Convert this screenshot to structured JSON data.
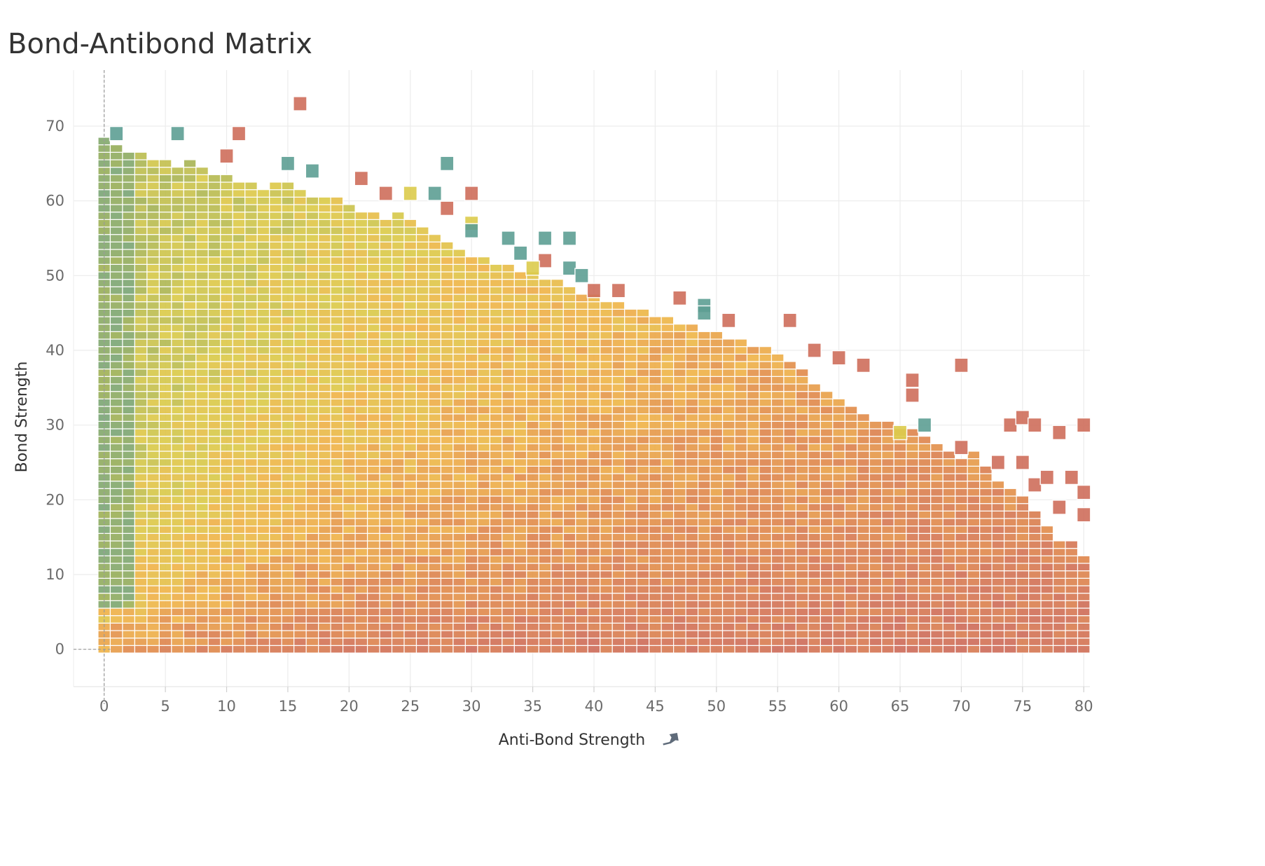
{
  "page": {
    "title": "Bond-Antibond Matrix"
  },
  "chart_data": {
    "type": "heatmap",
    "title": "Bond-Antibond Matrix",
    "xlabel": "Anti-Bond Strength",
    "ylabel": "Bond Strength",
    "x_axis_icon": "pin-icon",
    "xlim": [
      -2.5,
      80.5
    ],
    "ylim": [
      -5,
      77.5
    ],
    "x_ticks": [
      0,
      5,
      10,
      15,
      20,
      25,
      30,
      35,
      40,
      45,
      50,
      55,
      60,
      65,
      70,
      75,
      80
    ],
    "y_ticks": [
      0,
      10,
      20,
      30,
      40,
      50,
      60,
      70
    ],
    "cell_width": 1,
    "cell_height": 1,
    "grid": true,
    "reference_lines": {
      "x": 0,
      "y": 0,
      "style": "dashed"
    },
    "color_scale": [
      {
        "value": 0.0,
        "color": "#5e9f94"
      },
      {
        "value": 0.25,
        "color": "#9cb05a"
      },
      {
        "value": 0.45,
        "color": "#dccb4c"
      },
      {
        "value": 0.62,
        "color": "#f0b54a"
      },
      {
        "value": 0.8,
        "color": "#e0894f"
      },
      {
        "value": 1.0,
        "color": "#cf6e5c"
      }
    ],
    "column_top_bond": [
      {
        "anti_bond": 0,
        "max_bond": 68
      },
      {
        "anti_bond": 1,
        "max_bond": 67
      },
      {
        "anti_bond": 2,
        "max_bond": 66
      },
      {
        "anti_bond": 3,
        "max_bond": 66
      },
      {
        "anti_bond": 4,
        "max_bond": 65
      },
      {
        "anti_bond": 5,
        "max_bond": 65
      },
      {
        "anti_bond": 6,
        "max_bond": 64
      },
      {
        "anti_bond": 7,
        "max_bond": 65
      },
      {
        "anti_bond": 8,
        "max_bond": 64
      },
      {
        "anti_bond": 9,
        "max_bond": 63
      },
      {
        "anti_bond": 10,
        "max_bond": 63
      },
      {
        "anti_bond": 11,
        "max_bond": 62
      },
      {
        "anti_bond": 12,
        "max_bond": 62
      },
      {
        "anti_bond": 13,
        "max_bond": 61
      },
      {
        "anti_bond": 14,
        "max_bond": 62
      },
      {
        "anti_bond": 15,
        "max_bond": 62
      },
      {
        "anti_bond": 16,
        "max_bond": 61
      },
      {
        "anti_bond": 17,
        "max_bond": 60
      },
      {
        "anti_bond": 18,
        "max_bond": 60
      },
      {
        "anti_bond": 19,
        "max_bond": 60
      },
      {
        "anti_bond": 20,
        "max_bond": 59
      },
      {
        "anti_bond": 21,
        "max_bond": 58
      },
      {
        "anti_bond": 22,
        "max_bond": 58
      },
      {
        "anti_bond": 23,
        "max_bond": 57
      },
      {
        "anti_bond": 24,
        "max_bond": 58
      },
      {
        "anti_bond": 25,
        "max_bond": 57
      },
      {
        "anti_bond": 26,
        "max_bond": 56
      },
      {
        "anti_bond": 27,
        "max_bond": 55
      },
      {
        "anti_bond": 28,
        "max_bond": 54
      },
      {
        "anti_bond": 29,
        "max_bond": 53
      },
      {
        "anti_bond": 30,
        "max_bond": 52
      },
      {
        "anti_bond": 31,
        "max_bond": 52
      },
      {
        "anti_bond": 32,
        "max_bond": 51
      },
      {
        "anti_bond": 33,
        "max_bond": 51
      },
      {
        "anti_bond": 34,
        "max_bond": 50
      },
      {
        "anti_bond": 35,
        "max_bond": 50
      },
      {
        "anti_bond": 36,
        "max_bond": 49
      },
      {
        "anti_bond": 37,
        "max_bond": 49
      },
      {
        "anti_bond": 38,
        "max_bond": 48
      },
      {
        "anti_bond": 39,
        "max_bond": 47
      },
      {
        "anti_bond": 40,
        "max_bond": 47
      },
      {
        "anti_bond": 41,
        "max_bond": 46
      },
      {
        "anti_bond": 42,
        "max_bond": 46
      },
      {
        "anti_bond": 43,
        "max_bond": 45
      },
      {
        "anti_bond": 44,
        "max_bond": 45
      },
      {
        "anti_bond": 45,
        "max_bond": 44
      },
      {
        "anti_bond": 46,
        "max_bond": 44
      },
      {
        "anti_bond": 47,
        "max_bond": 43
      },
      {
        "anti_bond": 48,
        "max_bond": 43
      },
      {
        "anti_bond": 49,
        "max_bond": 42
      },
      {
        "anti_bond": 50,
        "max_bond": 42
      },
      {
        "anti_bond": 51,
        "max_bond": 41
      },
      {
        "anti_bond": 52,
        "max_bond": 41
      },
      {
        "anti_bond": 53,
        "max_bond": 40
      },
      {
        "anti_bond": 54,
        "max_bond": 40
      },
      {
        "anti_bond": 55,
        "max_bond": 39
      },
      {
        "anti_bond": 56,
        "max_bond": 38
      },
      {
        "anti_bond": 57,
        "max_bond": 37
      },
      {
        "anti_bond": 58,
        "max_bond": 35
      },
      {
        "anti_bond": 59,
        "max_bond": 34
      },
      {
        "anti_bond": 60,
        "max_bond": 33
      },
      {
        "anti_bond": 61,
        "max_bond": 32
      },
      {
        "anti_bond": 62,
        "max_bond": 31
      },
      {
        "anti_bond": 63,
        "max_bond": 30
      },
      {
        "anti_bond": 64,
        "max_bond": 30
      },
      {
        "anti_bond": 65,
        "max_bond": 29
      },
      {
        "anti_bond": 66,
        "max_bond": 29
      },
      {
        "anti_bond": 67,
        "max_bond": 28
      },
      {
        "anti_bond": 68,
        "max_bond": 27
      },
      {
        "anti_bond": 69,
        "max_bond": 26
      },
      {
        "anti_bond": 70,
        "max_bond": 25
      },
      {
        "anti_bond": 71,
        "max_bond": 26
      },
      {
        "anti_bond": 72,
        "max_bond": 24
      },
      {
        "anti_bond": 73,
        "max_bond": 22
      },
      {
        "anti_bond": 74,
        "max_bond": 21
      },
      {
        "anti_bond": 75,
        "max_bond": 20
      },
      {
        "anti_bond": 76,
        "max_bond": 18
      },
      {
        "anti_bond": 77,
        "max_bond": 16
      },
      {
        "anti_bond": 78,
        "max_bond": 14
      },
      {
        "anti_bond": 79,
        "max_bond": 14
      },
      {
        "anti_bond": 80,
        "max_bond": 12
      }
    ],
    "outlier_cells": [
      {
        "anti_bond": 16,
        "bond": 73,
        "color": "#cf6e5c"
      },
      {
        "anti_bond": 11,
        "bond": 69,
        "color": "#cf6e5c"
      },
      {
        "anti_bond": 1,
        "bond": 69,
        "color": "#5e9f94"
      },
      {
        "anti_bond": 6,
        "bond": 69,
        "color": "#5e9f94"
      },
      {
        "anti_bond": 10,
        "bond": 66,
        "color": "#cf6e5c"
      },
      {
        "anti_bond": 15,
        "bond": 65,
        "color": "#5e9f94"
      },
      {
        "anti_bond": 17,
        "bond": 64,
        "color": "#5e9f94"
      },
      {
        "anti_bond": 28,
        "bond": 65,
        "color": "#5e9f94"
      },
      {
        "anti_bond": 21,
        "bond": 63,
        "color": "#cf6e5c"
      },
      {
        "anti_bond": 23,
        "bond": 61,
        "color": "#cf6e5c"
      },
      {
        "anti_bond": 25,
        "bond": 61,
        "color": "#dccb4c"
      },
      {
        "anti_bond": 27,
        "bond": 61,
        "color": "#5e9f94"
      },
      {
        "anti_bond": 30,
        "bond": 61,
        "color": "#cf6e5c"
      },
      {
        "anti_bond": 28,
        "bond": 59,
        "color": "#cf6e5c"
      },
      {
        "anti_bond": 30,
        "bond": 57,
        "color": "#dccb4c"
      },
      {
        "anti_bond": 30,
        "bond": 56,
        "color": "#5e9f94"
      },
      {
        "anti_bond": 33,
        "bond": 55,
        "color": "#5e9f94"
      },
      {
        "anti_bond": 36,
        "bond": 55,
        "color": "#5e9f94"
      },
      {
        "anti_bond": 38,
        "bond": 55,
        "color": "#5e9f94"
      },
      {
        "anti_bond": 34,
        "bond": 53,
        "color": "#5e9f94"
      },
      {
        "anti_bond": 36,
        "bond": 52,
        "color": "#cf6e5c"
      },
      {
        "anti_bond": 35,
        "bond": 51,
        "color": "#dccb4c"
      },
      {
        "anti_bond": 38,
        "bond": 51,
        "color": "#5e9f94"
      },
      {
        "anti_bond": 39,
        "bond": 50,
        "color": "#5e9f94"
      },
      {
        "anti_bond": 40,
        "bond": 48,
        "color": "#cf6e5c"
      },
      {
        "anti_bond": 42,
        "bond": 48,
        "color": "#cf6e5c"
      },
      {
        "anti_bond": 47,
        "bond": 47,
        "color": "#cf6e5c"
      },
      {
        "anti_bond": 49,
        "bond": 46,
        "color": "#5e9f94"
      },
      {
        "anti_bond": 49,
        "bond": 45,
        "color": "#5e9f94"
      },
      {
        "anti_bond": 51,
        "bond": 44,
        "color": "#cf6e5c"
      },
      {
        "anti_bond": 56,
        "bond": 44,
        "color": "#cf6e5c"
      },
      {
        "anti_bond": 58,
        "bond": 40,
        "color": "#cf6e5c"
      },
      {
        "anti_bond": 60,
        "bond": 39,
        "color": "#cf6e5c"
      },
      {
        "anti_bond": 62,
        "bond": 38,
        "color": "#cf6e5c"
      },
      {
        "anti_bond": 70,
        "bond": 38,
        "color": "#cf6e5c"
      },
      {
        "anti_bond": 66,
        "bond": 36,
        "color": "#cf6e5c"
      },
      {
        "anti_bond": 66,
        "bond": 34,
        "color": "#cf6e5c"
      },
      {
        "anti_bond": 67,
        "bond": 30,
        "color": "#5e9f94"
      },
      {
        "anti_bond": 65,
        "bond": 29,
        "color": "#dccb4c"
      },
      {
        "anti_bond": 74,
        "bond": 30,
        "color": "#cf6e5c"
      },
      {
        "anti_bond": 75,
        "bond": 31,
        "color": "#cf6e5c"
      },
      {
        "anti_bond": 76,
        "bond": 30,
        "color": "#cf6e5c"
      },
      {
        "anti_bond": 78,
        "bond": 29,
        "color": "#cf6e5c"
      },
      {
        "anti_bond": 80,
        "bond": 30,
        "color": "#cf6e5c"
      },
      {
        "anti_bond": 70,
        "bond": 27,
        "color": "#cf6e5c"
      },
      {
        "anti_bond": 73,
        "bond": 25,
        "color": "#cf6e5c"
      },
      {
        "anti_bond": 75,
        "bond": 25,
        "color": "#cf6e5c"
      },
      {
        "anti_bond": 76,
        "bond": 22,
        "color": "#cf6e5c"
      },
      {
        "anti_bond": 77,
        "bond": 23,
        "color": "#cf6e5c"
      },
      {
        "anti_bond": 79,
        "bond": 23,
        "color": "#cf6e5c"
      },
      {
        "anti_bond": 80,
        "bond": 21,
        "color": "#cf6e5c"
      },
      {
        "anti_bond": 78,
        "bond": 19,
        "color": "#cf6e5c"
      },
      {
        "anti_bond": 80,
        "bond": 18,
        "color": "#cf6e5c"
      }
    ]
  }
}
